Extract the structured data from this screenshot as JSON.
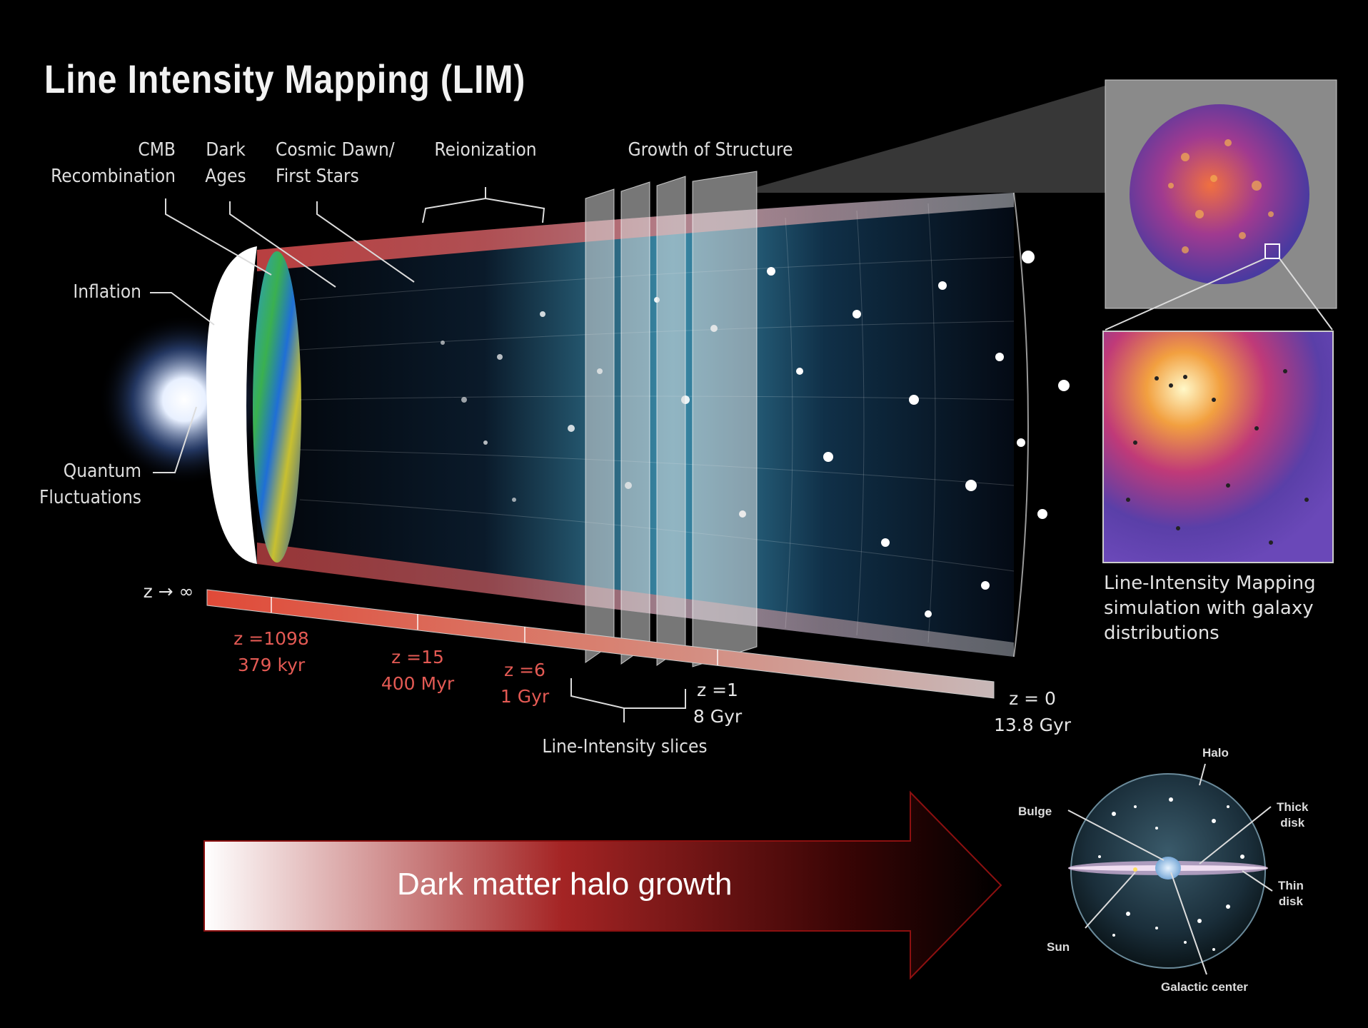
{
  "title": "Line Intensity Mapping (LIM)",
  "epochs": {
    "cmb": [
      "CMB",
      "Recombination"
    ],
    "dark_ages": [
      "Dark",
      "Ages"
    ],
    "cosmic_dawn": [
      "Cosmic Dawn/",
      "First Stars"
    ],
    "reionization": "Reionization",
    "growth": "Growth of Structure",
    "inflation": "Inflation",
    "quantum": [
      "Quantum",
      "Fluctuations"
    ]
  },
  "timeline": {
    "z_inf": "z → ∞",
    "points": [
      {
        "z": "z =1098",
        "t": "379 kyr"
      },
      {
        "z": "z =15",
        "t": "400 Myr"
      },
      {
        "z": "z =6",
        "t": "1 Gyr"
      },
      {
        "z": "z =1",
        "t": "8 Gyr"
      },
      {
        "z": "z = 0",
        "t": "13.8 Gyr"
      }
    ],
    "slices_label": "Line-Intensity slices"
  },
  "simulation_caption": [
    "Line-Intensity Mapping",
    "simulation with galaxy",
    "distributions"
  ],
  "arrow_label": "Dark matter halo growth",
  "galaxy": {
    "halo": "Halo",
    "bulge": "Bulge",
    "thick_disk": [
      "Thick",
      "disk"
    ],
    "thin_disk": [
      "Thin",
      "disk"
    ],
    "sun": "Sun",
    "galactic_center": "Galactic center"
  },
  "colors": {
    "background": "#000000",
    "timeline_red": "#e45a54",
    "arrow_dark_red": "#8c1010",
    "cmb_blue": "#1f6fd6",
    "sim_orange": "#f0a040",
    "sim_purple": "#5a3fa8"
  }
}
